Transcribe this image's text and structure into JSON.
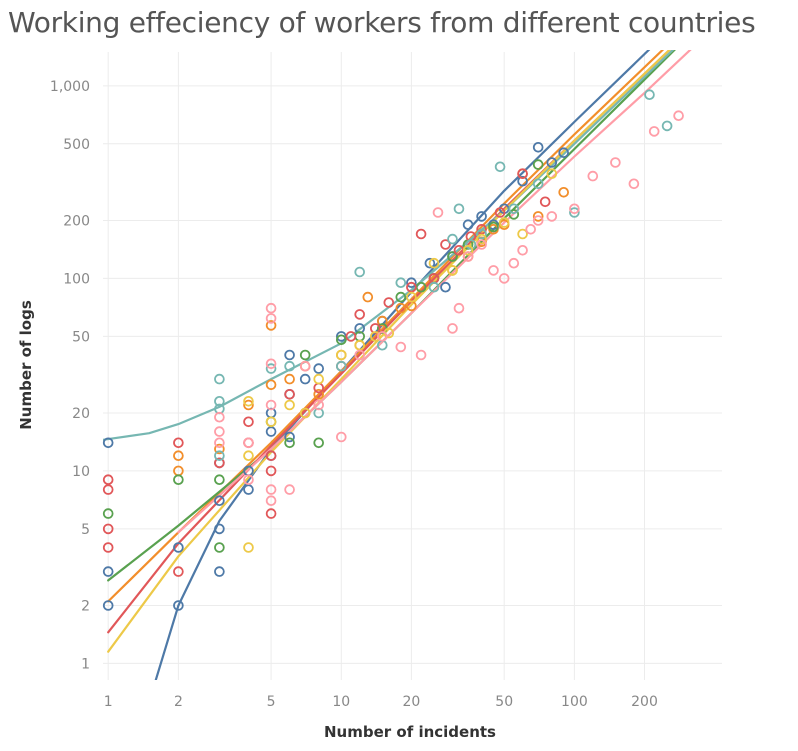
{
  "chart_data": {
    "type": "scatter",
    "title": "Working effeciency of workers from different countries",
    "xlabel": "Number of incidents",
    "ylabel": "Number of logs",
    "x_scale": "log",
    "y_scale": "log",
    "xlim": [
      0.95,
      430
    ],
    "ylim": [
      0.82,
      1500
    ],
    "x_ticks": [
      {
        "value": 1,
        "label": "1"
      },
      {
        "value": 2,
        "label": "2"
      },
      {
        "value": 5,
        "label": "5"
      },
      {
        "value": 10,
        "label": "10"
      },
      {
        "value": 20,
        "label": "20"
      },
      {
        "value": 50,
        "label": "50"
      },
      {
        "value": 100,
        "label": "100"
      },
      {
        "value": 200,
        "label": "200"
      }
    ],
    "y_ticks": [
      {
        "value": 1,
        "label": "1"
      },
      {
        "value": 2,
        "label": "2"
      },
      {
        "value": 5,
        "label": "5"
      },
      {
        "value": 10,
        "label": "10"
      },
      {
        "value": 20,
        "label": "20"
      },
      {
        "value": 50,
        "label": "50"
      },
      {
        "value": 100,
        "label": "100"
      },
      {
        "value": 200,
        "label": "200"
      },
      {
        "value": 500,
        "label": "500"
      },
      {
        "value": 1000,
        "label": "1,000"
      }
    ],
    "grid": true,
    "legend": "none",
    "series": [
      {
        "color": "#4e79a7",
        "trend": [
          [
            1.6,
            0.82
          ],
          [
            2,
            2.0
          ],
          [
            3,
            5.5
          ],
          [
            5,
            13
          ],
          [
            10,
            33
          ],
          [
            20,
            85
          ],
          [
            50,
            285
          ],
          [
            100,
            650
          ],
          [
            250,
            1900
          ]
        ],
        "points": [
          [
            1,
            14
          ],
          [
            1,
            3
          ],
          [
            1,
            2
          ],
          [
            2,
            4
          ],
          [
            2,
            2
          ],
          [
            3,
            7
          ],
          [
            3,
            5
          ],
          [
            3,
            3
          ],
          [
            3,
            11
          ],
          [
            4,
            10
          ],
          [
            4,
            8
          ],
          [
            5,
            12
          ],
          [
            5,
            20
          ],
          [
            5,
            16
          ],
          [
            6,
            40
          ],
          [
            6,
            15
          ],
          [
            6,
            25
          ],
          [
            7,
            30
          ],
          [
            8,
            34
          ],
          [
            10,
            50
          ],
          [
            12,
            55
          ],
          [
            15,
            60
          ],
          [
            20,
            95
          ],
          [
            24,
            120
          ],
          [
            28,
            90
          ],
          [
            30,
            130
          ],
          [
            35,
            190
          ],
          [
            40,
            210
          ],
          [
            45,
            190
          ],
          [
            50,
            230
          ],
          [
            60,
            320
          ],
          [
            70,
            480
          ],
          [
            80,
            400
          ],
          [
            90,
            450
          ]
        ]
      },
      {
        "color": "#f28e2b",
        "trend": [
          [
            1,
            2.1
          ],
          [
            2,
            4.8
          ],
          [
            5,
            14
          ],
          [
            10,
            33
          ],
          [
            20,
            78
          ],
          [
            50,
            245
          ],
          [
            100,
            560
          ],
          [
            300,
            2000
          ]
        ],
        "points": [
          [
            2,
            12
          ],
          [
            2,
            10
          ],
          [
            3,
            13
          ],
          [
            4,
            22
          ],
          [
            5,
            28
          ],
          [
            5,
            57
          ],
          [
            6,
            30
          ],
          [
            7,
            35
          ],
          [
            8,
            25
          ],
          [
            10,
            40
          ],
          [
            12,
            45
          ],
          [
            13,
            80
          ],
          [
            15,
            60
          ],
          [
            18,
            70
          ],
          [
            20,
            72
          ],
          [
            25,
            100
          ],
          [
            30,
            110
          ],
          [
            35,
            130
          ],
          [
            40,
            155
          ],
          [
            45,
            180
          ],
          [
            50,
            190
          ],
          [
            60,
            350
          ],
          [
            70,
            210
          ],
          [
            90,
            280
          ]
        ]
      },
      {
        "color": "#59a14f",
        "trend": [
          [
            1,
            2.7
          ],
          [
            2,
            5.2
          ],
          [
            5,
            13
          ],
          [
            10,
            29
          ],
          [
            20,
            66
          ],
          [
            50,
            205
          ],
          [
            100,
            470
          ],
          [
            430,
            2700
          ]
        ],
        "points": [
          [
            1,
            6
          ],
          [
            2,
            9
          ],
          [
            3,
            4
          ],
          [
            3,
            9
          ],
          [
            5,
            18
          ],
          [
            6,
            14
          ],
          [
            7,
            40
          ],
          [
            8,
            14
          ],
          [
            10,
            48
          ],
          [
            12,
            50
          ],
          [
            15,
            55
          ],
          [
            18,
            80
          ],
          [
            22,
            90
          ],
          [
            25,
            100
          ],
          [
            30,
            130
          ],
          [
            35,
            150
          ],
          [
            45,
            185
          ],
          [
            55,
            215
          ],
          [
            70,
            390
          ]
        ]
      },
      {
        "color": "#e15759",
        "trend": [
          [
            1,
            1.45
          ],
          [
            2,
            4.2
          ],
          [
            5,
            13.5
          ],
          [
            10,
            32
          ],
          [
            20,
            76
          ],
          [
            50,
            230
          ],
          [
            100,
            520
          ],
          [
            430,
            2800
          ]
        ],
        "points": [
          [
            1,
            9
          ],
          [
            1,
            8
          ],
          [
            1,
            5
          ],
          [
            1,
            4
          ],
          [
            2,
            14
          ],
          [
            2,
            3
          ],
          [
            3,
            11
          ],
          [
            4,
            14
          ],
          [
            4,
            18
          ],
          [
            5,
            12
          ],
          [
            5,
            10
          ],
          [
            5,
            6
          ],
          [
            6,
            25
          ],
          [
            7,
            20
          ],
          [
            8,
            27
          ],
          [
            10,
            35
          ],
          [
            11,
            50
          ],
          [
            12,
            65
          ],
          [
            14,
            55
          ],
          [
            16,
            75
          ],
          [
            20,
            90
          ],
          [
            22,
            170
          ],
          [
            25,
            100
          ],
          [
            28,
            150
          ],
          [
            32,
            140
          ],
          [
            36,
            165
          ],
          [
            40,
            180
          ],
          [
            48,
            220
          ],
          [
            60,
            350
          ],
          [
            75,
            250
          ]
        ]
      },
      {
        "color": "#76b7b2",
        "trend": [
          [
            0.95,
            14.5
          ],
          [
            1.5,
            15.7
          ],
          [
            2,
            17.5
          ],
          [
            3,
            21.5
          ],
          [
            5,
            30
          ],
          [
            10,
            46
          ],
          [
            20,
            87
          ],
          [
            50,
            225
          ],
          [
            100,
            500
          ],
          [
            430,
            2700
          ]
        ],
        "points": [
          [
            3,
            30
          ],
          [
            3,
            23
          ],
          [
            3,
            21
          ],
          [
            3,
            12
          ],
          [
            5,
            34
          ],
          [
            6,
            35
          ],
          [
            8,
            20
          ],
          [
            10,
            35
          ],
          [
            12,
            108
          ],
          [
            15,
            45
          ],
          [
            18,
            95
          ],
          [
            25,
            90
          ],
          [
            30,
            160
          ],
          [
            32,
            230
          ],
          [
            36,
            150
          ],
          [
            40,
            170
          ],
          [
            48,
            380
          ],
          [
            55,
            230
          ],
          [
            70,
            310
          ],
          [
            100,
            220
          ],
          [
            210,
            900
          ],
          [
            250,
            620
          ]
        ]
      },
      {
        "color": "#edc948",
        "trend": [
          [
            1,
            1.15
          ],
          [
            2,
            3.6
          ],
          [
            5,
            12.5
          ],
          [
            10,
            30
          ],
          [
            20,
            73
          ],
          [
            50,
            225
          ],
          [
            100,
            520
          ],
          [
            430,
            2800
          ]
        ],
        "points": [
          [
            4,
            4
          ],
          [
            4,
            23
          ],
          [
            4,
            12
          ],
          [
            5,
            18
          ],
          [
            6,
            22
          ],
          [
            7,
            20
          ],
          [
            8,
            30
          ],
          [
            10,
            40
          ],
          [
            12,
            45
          ],
          [
            14,
            50
          ],
          [
            16,
            52
          ],
          [
            20,
            80
          ],
          [
            25,
            120
          ],
          [
            30,
            110
          ],
          [
            35,
            140
          ],
          [
            40,
            160
          ],
          [
            50,
            195
          ],
          [
            60,
            170
          ],
          [
            80,
            350
          ]
        ]
      },
      {
        "color": "#ff9da7",
        "trend": [
          [
            2,
            4.8
          ],
          [
            5,
            13
          ],
          [
            10,
            29
          ],
          [
            20,
            66
          ],
          [
            50,
            195
          ],
          [
            100,
            430
          ],
          [
            200,
            920
          ],
          [
            430,
            2200
          ]
        ],
        "points": [
          [
            3,
            19
          ],
          [
            3,
            16
          ],
          [
            3,
            14
          ],
          [
            4,
            14
          ],
          [
            4,
            9
          ],
          [
            5,
            70
          ],
          [
            5,
            62
          ],
          [
            5,
            36
          ],
          [
            5,
            22
          ],
          [
            5,
            8
          ],
          [
            5,
            7
          ],
          [
            6,
            8
          ],
          [
            7,
            35
          ],
          [
            8,
            22
          ],
          [
            10,
            15
          ],
          [
            12,
            40
          ],
          [
            15,
            50
          ],
          [
            18,
            44
          ],
          [
            22,
            40
          ],
          [
            26,
            220
          ],
          [
            30,
            55
          ],
          [
            32,
            70
          ],
          [
            35,
            130
          ],
          [
            40,
            150
          ],
          [
            45,
            110
          ],
          [
            50,
            100
          ],
          [
            55,
            120
          ],
          [
            60,
            140
          ],
          [
            65,
            180
          ],
          [
            70,
            200
          ],
          [
            80,
            210
          ],
          [
            100,
            230
          ],
          [
            120,
            340
          ],
          [
            150,
            400
          ],
          [
            180,
            310
          ],
          [
            220,
            580
          ],
          [
            280,
            700
          ]
        ]
      }
    ]
  }
}
